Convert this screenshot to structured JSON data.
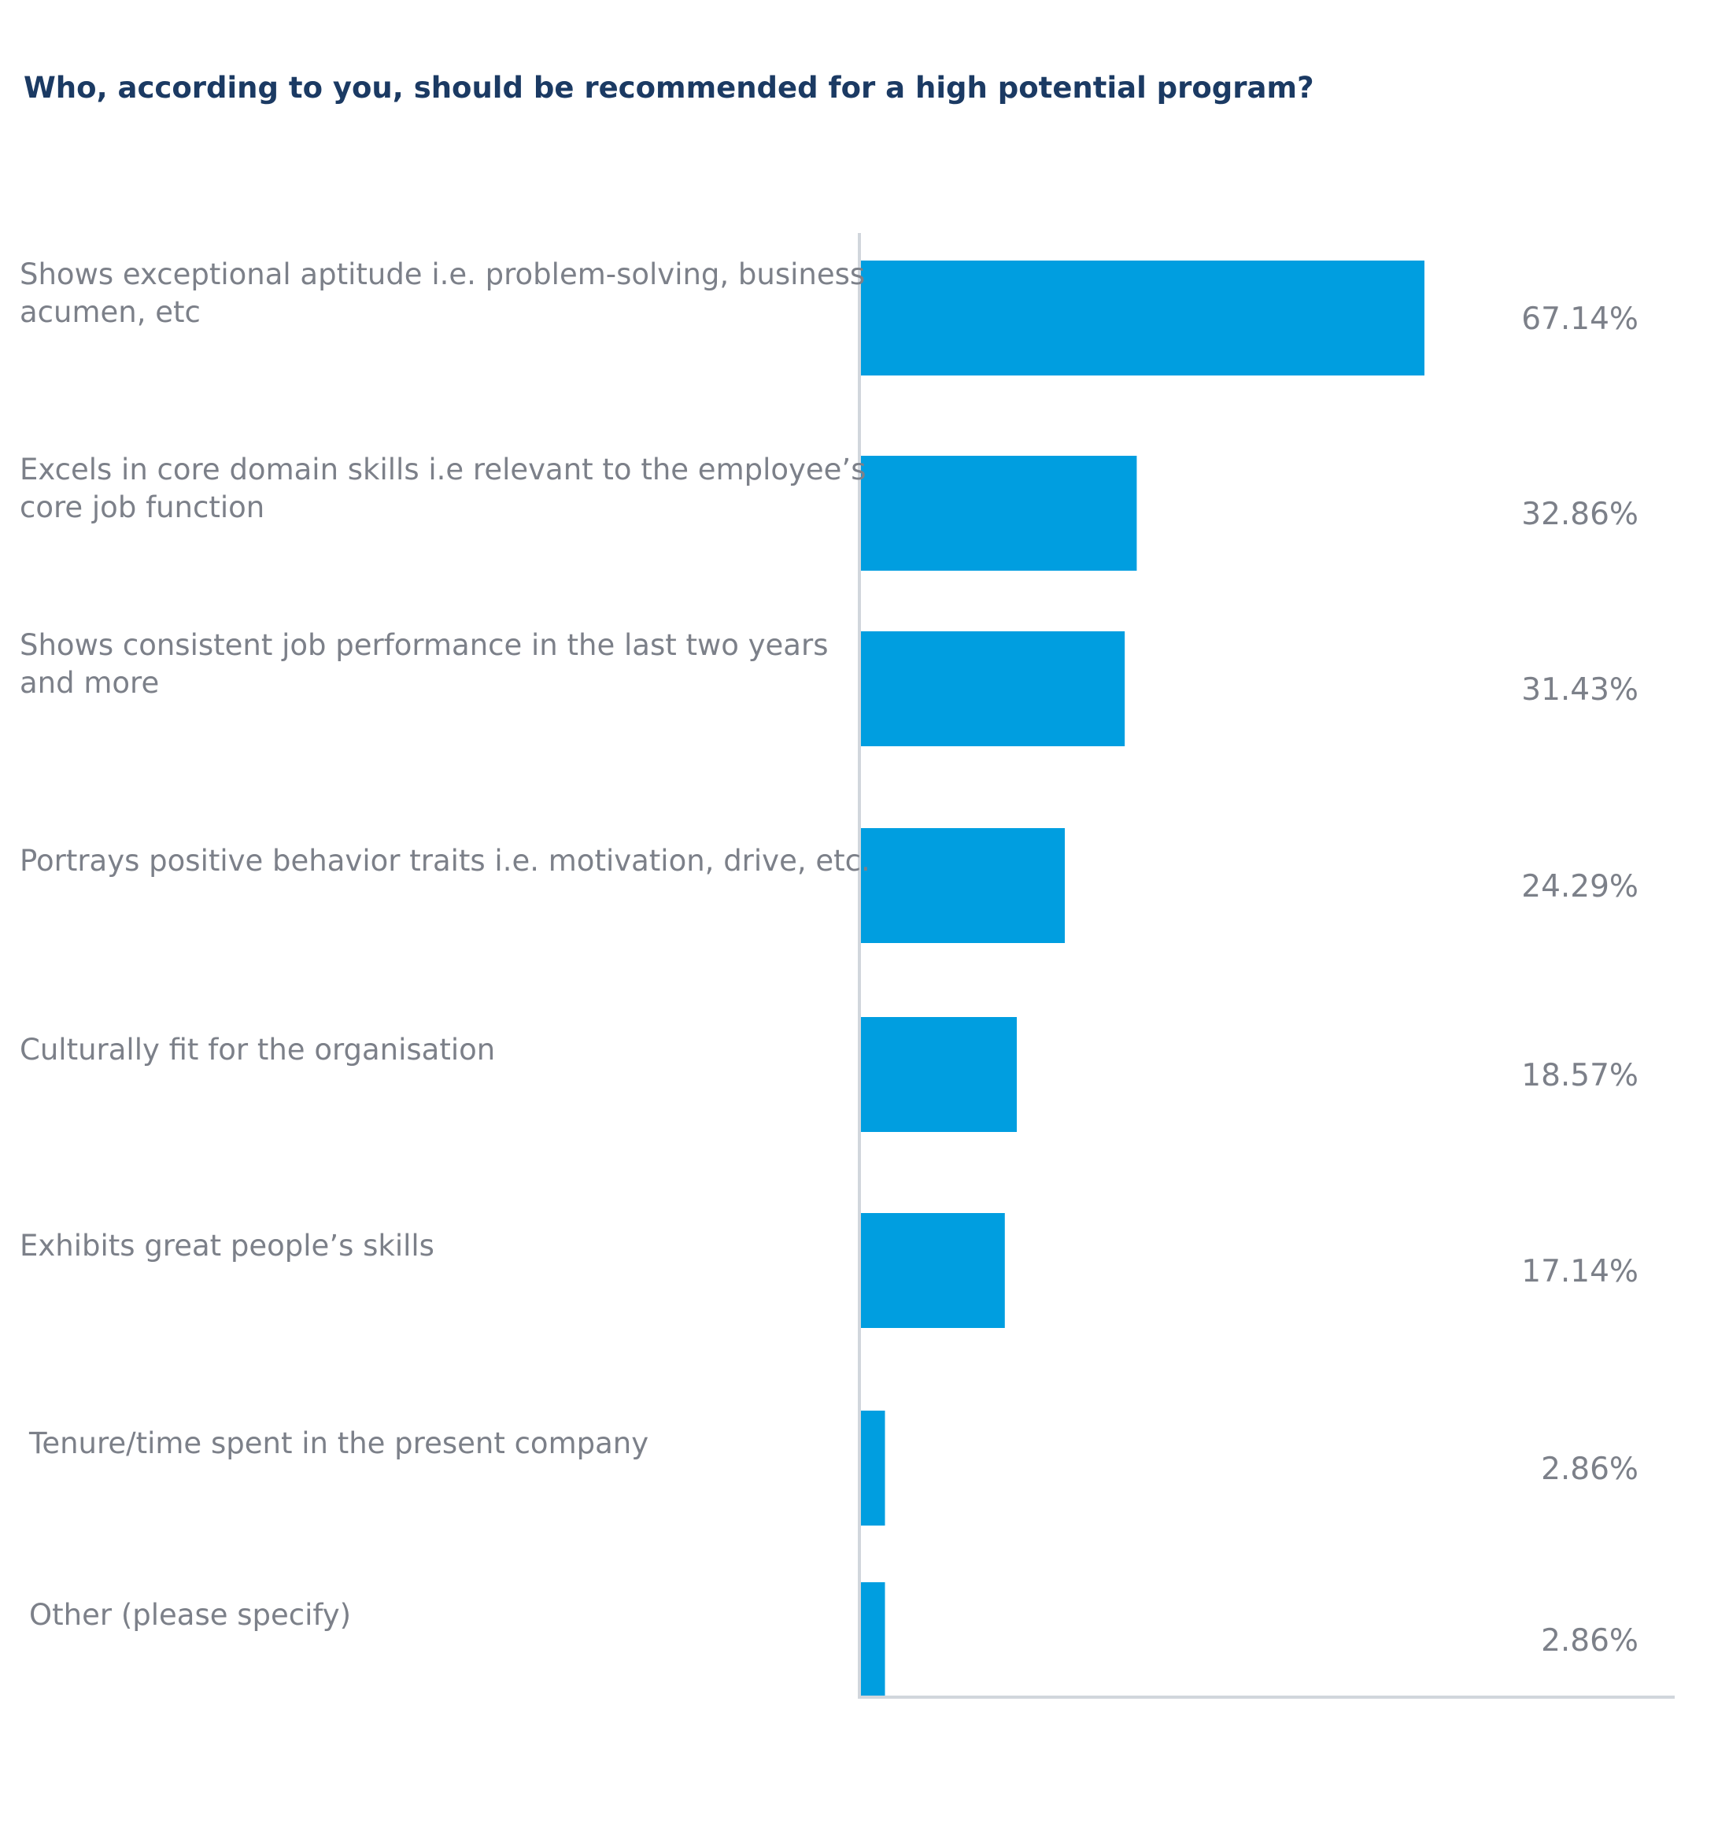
{
  "chart_data": {
    "type": "bar",
    "orientation": "horizontal",
    "title": "Who, according to you,  should be recommended for a high potential program?",
    "xlabel": "",
    "ylabel": "",
    "xlim": [
      0,
      100
    ],
    "grid": false,
    "legend": "none",
    "categories": [
      "Shows exceptional aptitude i.e. problem-solving, business acumen, etc",
      "Excels in core domain skills i.e relevant to the employee’s core job function",
      "Shows consistent job performance in the last two years and more",
      "Portrays positive behavior traits i.e. motivation, drive, etc.",
      "Culturally fit for the organisation",
      "Exhibits great people’s skills",
      "Tenure/time spent in the present company",
      "Other (please specify)"
    ],
    "category_lines": [
      [
        "Shows exceptional aptitude i.e. problem-solving, business",
        "acumen, etc"
      ],
      [
        "Excels in core domain skills i.e relevant to the employee’s",
        "core job function"
      ],
      [
        "Shows consistent job performance in the last two years",
        "and more"
      ],
      [
        "Portrays positive behavior traits i.e. motivation, drive, etc."
      ],
      [
        "Culturally fit for the organisation"
      ],
      [
        "Exhibits great people’s skills"
      ],
      [
        "Tenure/time spent in the present company"
      ],
      [
        "Other (please specify)"
      ]
    ],
    "values": [
      67.14,
      32.86,
      31.43,
      24.29,
      18.57,
      17.14,
      2.86,
      2.86
    ],
    "value_labels": [
      "67.14%",
      "32.86%",
      "31.43%",
      "24.29%",
      "18.57%",
      "17.14%",
      "2.86%",
      "2.86%"
    ],
    "colors": {
      "bar": "#009ee0",
      "title": "#1b3a63",
      "label": "#7c8089",
      "axis": "#d1d6dc"
    }
  }
}
